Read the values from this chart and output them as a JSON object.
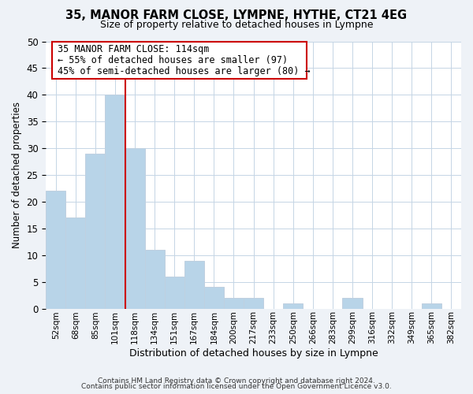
{
  "title": "35, MANOR FARM CLOSE, LYMPNE, HYTHE, CT21 4EG",
  "subtitle": "Size of property relative to detached houses in Lympne",
  "xlabel": "Distribution of detached houses by size in Lympne",
  "ylabel": "Number of detached properties",
  "bar_labels": [
    "52sqm",
    "68sqm",
    "85sqm",
    "101sqm",
    "118sqm",
    "134sqm",
    "151sqm",
    "167sqm",
    "184sqm",
    "200sqm",
    "217sqm",
    "233sqm",
    "250sqm",
    "266sqm",
    "283sqm",
    "299sqm",
    "316sqm",
    "332sqm",
    "349sqm",
    "365sqm",
    "382sqm"
  ],
  "bar_values": [
    22,
    17,
    29,
    40,
    30,
    11,
    6,
    9,
    4,
    2,
    2,
    0,
    1,
    0,
    0,
    2,
    0,
    0,
    0,
    1,
    0
  ],
  "bar_color": "#b8d4e8",
  "bar_edge_color": "#c0d0e0",
  "vline_x": 4,
  "vline_color": "#cc0000",
  "annotation_title": "35 MANOR FARM CLOSE: 114sqm",
  "annotation_line1": "← 55% of detached houses are smaller (97)",
  "annotation_line2": "45% of semi-detached houses are larger (80) →",
  "box_color": "#cc0000",
  "ylim": [
    0,
    50
  ],
  "yticks": [
    0,
    5,
    10,
    15,
    20,
    25,
    30,
    35,
    40,
    45,
    50
  ],
  "footnote1": "Contains HM Land Registry data © Crown copyright and database right 2024.",
  "footnote2": "Contains public sector information licensed under the Open Government Licence v3.0.",
  "bg_color": "#eef2f7",
  "plot_bg_color": "#ffffff",
  "grid_color": "#c5d5e5"
}
